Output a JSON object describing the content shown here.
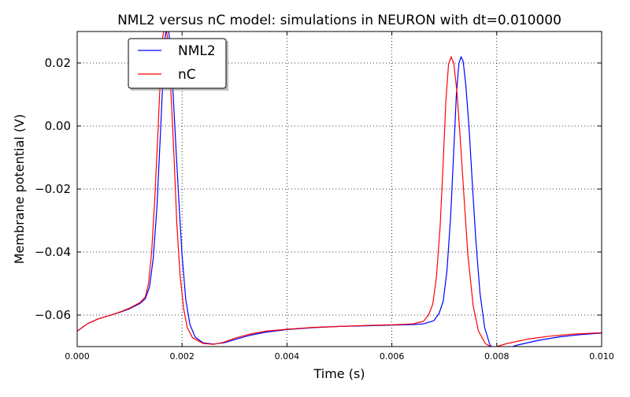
{
  "chart_data": {
    "type": "line",
    "title": "NML2 versus nC model: simulations in NEURON with dt=0.010000",
    "xlabel": "Time (s)",
    "ylabel": "Membrane potential (V)",
    "xlim": [
      0.0,
      0.01
    ],
    "ylim": [
      -0.07,
      0.03
    ],
    "grid": true,
    "legend_position": "top-left",
    "x_ticks": [
      0.0,
      0.002,
      0.004,
      0.006,
      0.008,
      0.01
    ],
    "x_tick_labels": [
      "0.000",
      "0.002",
      "0.004",
      "0.006",
      "0.008",
      "0.010"
    ],
    "y_ticks": [
      -0.06,
      -0.04,
      -0.02,
      0.0,
      0.02
    ],
    "y_tick_labels": [
      "−0.06",
      "−0.04",
      "−0.02",
      "0.00",
      "0.02"
    ],
    "series": [
      {
        "name": "NML2",
        "color": "#0000ff",
        "points": [
          [
            0.0,
            -0.0651
          ],
          [
            0.0002,
            -0.0627
          ],
          [
            0.0004,
            -0.0612
          ],
          [
            0.0006,
            -0.0602
          ],
          [
            0.0008,
            -0.0592
          ],
          [
            0.001,
            -0.058
          ],
          [
            0.0012,
            -0.0563
          ],
          [
            0.0013,
            -0.0548
          ],
          [
            0.00138,
            -0.051
          ],
          [
            0.00145,
            -0.042
          ],
          [
            0.00152,
            -0.026
          ],
          [
            0.00158,
            -0.005
          ],
          [
            0.00163,
            0.013
          ],
          [
            0.00167,
            0.027
          ],
          [
            0.0017,
            0.031
          ],
          [
            0.00174,
            0.031
          ],
          [
            0.00178,
            0.024
          ],
          [
            0.00183,
            0.01
          ],
          [
            0.00189,
            -0.009
          ],
          [
            0.00195,
            -0.027
          ],
          [
            0.002,
            -0.041
          ],
          [
            0.00207,
            -0.055
          ],
          [
            0.00215,
            -0.063
          ],
          [
            0.00225,
            -0.067
          ],
          [
            0.0024,
            -0.0688
          ],
          [
            0.0026,
            -0.0692
          ],
          [
            0.0028,
            -0.0688
          ],
          [
            0.003,
            -0.0678
          ],
          [
            0.0033,
            -0.0664
          ],
          [
            0.0036,
            -0.0654
          ],
          [
            0.004,
            -0.0646
          ],
          [
            0.0045,
            -0.064
          ],
          [
            0.005,
            -0.0636
          ],
          [
            0.0055,
            -0.0634
          ],
          [
            0.006,
            -0.0632
          ],
          [
            0.0064,
            -0.063
          ],
          [
            0.0066,
            -0.0628
          ],
          [
            0.0068,
            -0.0618
          ],
          [
            0.0069,
            -0.0595
          ],
          [
            0.00698,
            -0.0555
          ],
          [
            0.00705,
            -0.046
          ],
          [
            0.00712,
            -0.029
          ],
          [
            0.00718,
            -0.008
          ],
          [
            0.00723,
            0.01
          ],
          [
            0.00728,
            0.02
          ],
          [
            0.00732,
            0.022
          ],
          [
            0.00736,
            0.0205
          ],
          [
            0.00741,
            0.013
          ],
          [
            0.00747,
            0.0
          ],
          [
            0.00753,
            -0.017
          ],
          [
            0.0076,
            -0.036
          ],
          [
            0.00768,
            -0.053
          ],
          [
            0.00777,
            -0.064
          ],
          [
            0.00787,
            -0.0695
          ],
          [
            0.008,
            -0.0715
          ],
          [
            0.0081,
            -0.071
          ],
          [
            0.0084,
            -0.0695
          ],
          [
            0.0088,
            -0.068
          ],
          [
            0.0092,
            -0.0669
          ],
          [
            0.0096,
            -0.0662
          ],
          [
            0.01,
            -0.0657
          ]
        ]
      },
      {
        "name": "nC",
        "color": "#ff0000",
        "points": [
          [
            0.0,
            -0.0651
          ],
          [
            0.0002,
            -0.0627
          ],
          [
            0.0004,
            -0.0612
          ],
          [
            0.0006,
            -0.0602
          ],
          [
            0.0008,
            -0.0591
          ],
          [
            0.001,
            -0.0578
          ],
          [
            0.0012,
            -0.056
          ],
          [
            0.0013,
            -0.0542
          ],
          [
            0.00136,
            -0.05
          ],
          [
            0.00142,
            -0.04
          ],
          [
            0.00148,
            -0.023
          ],
          [
            0.00154,
            -0.002
          ],
          [
            0.00159,
            0.017
          ],
          [
            0.00163,
            0.028
          ],
          [
            0.00166,
            0.031
          ],
          [
            0.0017,
            0.031
          ],
          [
            0.00174,
            0.025
          ],
          [
            0.00179,
            0.01
          ],
          [
            0.00185,
            -0.011
          ],
          [
            0.0019,
            -0.031
          ],
          [
            0.00196,
            -0.047
          ],
          [
            0.00203,
            -0.058
          ],
          [
            0.0021,
            -0.064
          ],
          [
            0.0022,
            -0.0672
          ],
          [
            0.0024,
            -0.069
          ],
          [
            0.0026,
            -0.0693
          ],
          [
            0.0028,
            -0.0686
          ],
          [
            0.003,
            -0.0674
          ],
          [
            0.0033,
            -0.066
          ],
          [
            0.0036,
            -0.0651
          ],
          [
            0.004,
            -0.0645
          ],
          [
            0.0045,
            -0.0639
          ],
          [
            0.005,
            -0.0636
          ],
          [
            0.0055,
            -0.0633
          ],
          [
            0.006,
            -0.0631
          ],
          [
            0.0064,
            -0.0628
          ],
          [
            0.0066,
            -0.062
          ],
          [
            0.0067,
            -0.06
          ],
          [
            0.00678,
            -0.0565
          ],
          [
            0.00685,
            -0.048
          ],
          [
            0.00692,
            -0.032
          ],
          [
            0.00698,
            -0.011
          ],
          [
            0.00703,
            0.008
          ],
          [
            0.00708,
            0.0195
          ],
          [
            0.00713,
            0.022
          ],
          [
            0.00718,
            0.02
          ],
          [
            0.00724,
            0.011
          ],
          [
            0.0073,
            -0.003
          ],
          [
            0.00737,
            -0.021
          ],
          [
            0.00745,
            -0.041
          ],
          [
            0.00755,
            -0.057
          ],
          [
            0.00765,
            -0.065
          ],
          [
            0.00778,
            -0.069
          ],
          [
            0.0079,
            -0.0702
          ],
          [
            0.008,
            -0.07
          ],
          [
            0.0082,
            -0.069
          ],
          [
            0.0086,
            -0.0676
          ],
          [
            0.009,
            -0.0667
          ],
          [
            0.0095,
            -0.066
          ],
          [
            0.01,
            -0.0656
          ]
        ]
      }
    ]
  }
}
